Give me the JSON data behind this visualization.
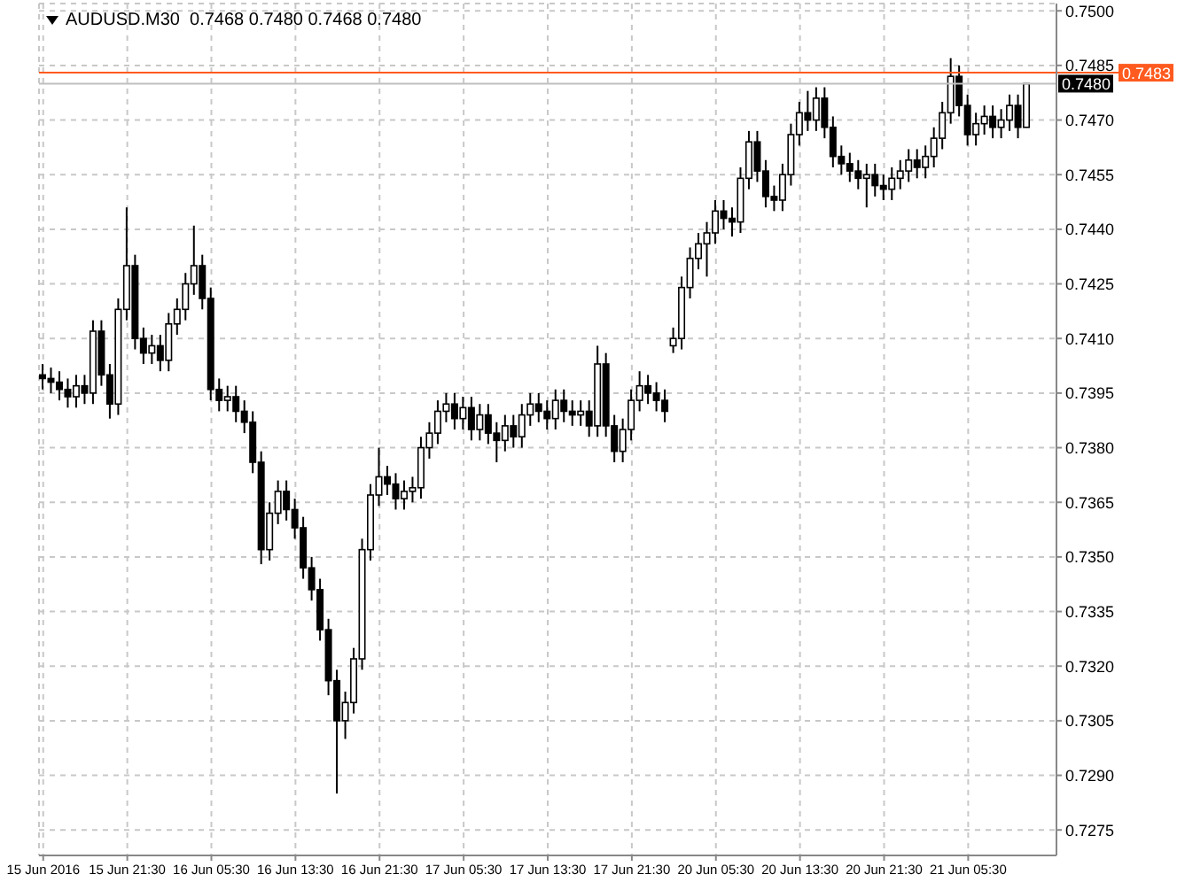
{
  "chart_data": {
    "type": "candlestick",
    "title": "AUDUSD.M30  0.7468 0.7480 0.7468 0.7480",
    "color": "#000000",
    "grid": true,
    "legend": false,
    "categories": [
      "15 Jun 2016",
      null,
      null,
      null,
      null,
      null,
      null,
      null,
      null,
      null,
      "15 Jun 21:30",
      null,
      null,
      null,
      null,
      null,
      null,
      null,
      null,
      null,
      "16 Jun 05:30",
      null,
      null,
      null,
      null,
      null,
      null,
      null,
      null,
      null,
      "16 Jun 13:30",
      null,
      null,
      null,
      null,
      null,
      null,
      null,
      null,
      null,
      "16 Jun 21:30",
      null,
      null,
      null,
      null,
      null,
      null,
      null,
      null,
      null,
      "17 Jun 05:30",
      null,
      null,
      null,
      null,
      null,
      null,
      null,
      null,
      null,
      "17 Jun 13:30",
      null,
      null,
      null,
      null,
      null,
      null,
      null,
      null,
      null,
      "17 Jun 21:30",
      null,
      null,
      null,
      null,
      null,
      null,
      null,
      null,
      null,
      "20 Jun 05:30",
      null,
      null,
      null,
      null,
      null,
      null,
      null,
      null,
      null,
      "20 Jun 13:30",
      null,
      null,
      null,
      null,
      null,
      null,
      null,
      null,
      null,
      "20 Jun 21:30",
      null,
      null,
      null,
      null,
      null,
      null,
      null,
      null,
      null,
      "21 Jun 05:30",
      null,
      null,
      null,
      null,
      null,
      null,
      null,
      null,
      null,
      null
    ],
    "ohlc": [
      [
        0.74,
        0.7403,
        0.7396,
        0.7399
      ],
      [
        0.7399,
        0.7402,
        0.7395,
        0.7398
      ],
      [
        0.7398,
        0.7401,
        0.7393,
        0.7396
      ],
      [
        0.7396,
        0.7399,
        0.7391,
        0.7394
      ],
      [
        0.7394,
        0.74,
        0.7391,
        0.7397
      ],
      [
        0.7397,
        0.74,
        0.7392,
        0.7395
      ],
      [
        0.7395,
        0.7415,
        0.7392,
        0.7412
      ],
      [
        0.7412,
        0.7415,
        0.7397,
        0.74
      ],
      [
        0.74,
        0.7403,
        0.7388,
        0.7392
      ],
      [
        0.7392,
        0.7421,
        0.7389,
        0.7418
      ],
      [
        0.7418,
        0.7446,
        0.7415,
        0.743
      ],
      [
        0.743,
        0.7433,
        0.7407,
        0.741
      ],
      [
        0.741,
        0.7413,
        0.7403,
        0.7406
      ],
      [
        0.7406,
        0.7411,
        0.7403,
        0.7408
      ],
      [
        0.7408,
        0.7411,
        0.7401,
        0.7404
      ],
      [
        0.7404,
        0.7417,
        0.7401,
        0.7414
      ],
      [
        0.7414,
        0.7421,
        0.7411,
        0.7418
      ],
      [
        0.7418,
        0.7428,
        0.7415,
        0.7425
      ],
      [
        0.7425,
        0.7441,
        0.7422,
        0.743
      ],
      [
        0.743,
        0.7433,
        0.7418,
        0.7421
      ],
      [
        0.7421,
        0.7424,
        0.7393,
        0.7396
      ],
      [
        0.7396,
        0.7399,
        0.739,
        0.7393
      ],
      [
        0.7393,
        0.7397,
        0.739,
        0.7394
      ],
      [
        0.7394,
        0.7397,
        0.7387,
        0.739
      ],
      [
        0.739,
        0.7393,
        0.7384,
        0.7387
      ],
      [
        0.7387,
        0.739,
        0.7373,
        0.7376
      ],
      [
        0.7376,
        0.7379,
        0.7348,
        0.7352
      ],
      [
        0.7352,
        0.7365,
        0.7349,
        0.7362
      ],
      [
        0.7362,
        0.7371,
        0.7359,
        0.7368
      ],
      [
        0.7368,
        0.7371,
        0.736,
        0.7363
      ],
      [
        0.7363,
        0.7366,
        0.7355,
        0.7358
      ],
      [
        0.7358,
        0.7361,
        0.7344,
        0.7347
      ],
      [
        0.7347,
        0.735,
        0.7338,
        0.7341
      ],
      [
        0.7341,
        0.7344,
        0.7327,
        0.733
      ],
      [
        0.733,
        0.7333,
        0.7312,
        0.7316
      ],
      [
        0.7316,
        0.7319,
        0.7285,
        0.7305
      ],
      [
        0.7305,
        0.7313,
        0.73,
        0.731
      ],
      [
        0.731,
        0.7325,
        0.7307,
        0.7322
      ],
      [
        0.7322,
        0.7355,
        0.7319,
        0.7352
      ],
      [
        0.7352,
        0.737,
        0.7349,
        0.7367
      ],
      [
        0.7367,
        0.738,
        0.7364,
        0.7372
      ],
      [
        0.7372,
        0.7375,
        0.7367,
        0.737
      ],
      [
        0.737,
        0.7373,
        0.7363,
        0.7366
      ],
      [
        0.7366,
        0.7371,
        0.7363,
        0.7368
      ],
      [
        0.7368,
        0.7372,
        0.7365,
        0.7369
      ],
      [
        0.7369,
        0.7383,
        0.7366,
        0.738
      ],
      [
        0.738,
        0.7387,
        0.7377,
        0.7384
      ],
      [
        0.7384,
        0.7393,
        0.7381,
        0.739
      ],
      [
        0.739,
        0.7395,
        0.7387,
        0.7392
      ],
      [
        0.7392,
        0.7395,
        0.7385,
        0.7388
      ],
      [
        0.7388,
        0.7394,
        0.7385,
        0.7391
      ],
      [
        0.7391,
        0.7394,
        0.7382,
        0.7385
      ],
      [
        0.7385,
        0.7392,
        0.7382,
        0.7389
      ],
      [
        0.7389,
        0.7392,
        0.7381,
        0.7384
      ],
      [
        0.7384,
        0.7387,
        0.7376,
        0.7382
      ],
      [
        0.7382,
        0.7389,
        0.7379,
        0.7386
      ],
      [
        0.7386,
        0.7389,
        0.738,
        0.7383
      ],
      [
        0.7383,
        0.7392,
        0.738,
        0.7389
      ],
      [
        0.7389,
        0.7395,
        0.7386,
        0.7392
      ],
      [
        0.7392,
        0.7395,
        0.7387,
        0.739
      ],
      [
        0.739,
        0.7393,
        0.7385,
        0.7388
      ],
      [
        0.7388,
        0.7396,
        0.7385,
        0.7393
      ],
      [
        0.7393,
        0.7396,
        0.7387,
        0.739
      ],
      [
        0.739,
        0.7393,
        0.7386,
        0.7389
      ],
      [
        0.7389,
        0.7393,
        0.7386,
        0.739
      ],
      [
        0.739,
        0.7393,
        0.7383,
        0.7386
      ],
      [
        0.7386,
        0.7408,
        0.7383,
        0.7403
      ],
      [
        0.7403,
        0.7406,
        0.7383,
        0.7386
      ],
      [
        0.7386,
        0.7389,
        0.7376,
        0.7379
      ],
      [
        0.7379,
        0.7388,
        0.7376,
        0.7385
      ],
      [
        0.7385,
        0.7396,
        0.7382,
        0.7393
      ],
      [
        0.7393,
        0.7401,
        0.739,
        0.7397
      ],
      [
        0.7397,
        0.74,
        0.7392,
        0.7395
      ],
      [
        0.7395,
        0.7398,
        0.739,
        0.7393
      ],
      [
        0.7393,
        0.7396,
        0.7387,
        0.739
      ],
      [
        0.7408,
        0.7413,
        0.7406,
        0.741
      ],
      [
        0.741,
        0.7427,
        0.7407,
        0.7424
      ],
      [
        0.7424,
        0.7435,
        0.7421,
        0.7432
      ],
      [
        0.7432,
        0.7439,
        0.7429,
        0.7436
      ],
      [
        0.7436,
        0.7442,
        0.7427,
        0.7439
      ],
      [
        0.7439,
        0.7448,
        0.7436,
        0.7445
      ],
      [
        0.7445,
        0.7448,
        0.744,
        0.7443
      ],
      [
        0.7443,
        0.7446,
        0.7438,
        0.7442
      ],
      [
        0.7442,
        0.7457,
        0.7439,
        0.7454
      ],
      [
        0.7454,
        0.7467,
        0.7451,
        0.7464
      ],
      [
        0.7464,
        0.7467,
        0.7453,
        0.7456
      ],
      [
        0.7456,
        0.7459,
        0.7446,
        0.7449
      ],
      [
        0.7449,
        0.7452,
        0.7445,
        0.7448
      ],
      [
        0.7448,
        0.7458,
        0.7445,
        0.7455
      ],
      [
        0.7455,
        0.7469,
        0.7452,
        0.7466
      ],
      [
        0.7466,
        0.7475,
        0.7463,
        0.7472
      ],
      [
        0.7472,
        0.7478,
        0.7467,
        0.747
      ],
      [
        0.747,
        0.7479,
        0.7467,
        0.7476
      ],
      [
        0.7476,
        0.7479,
        0.7465,
        0.7468
      ],
      [
        0.7468,
        0.7471,
        0.7457,
        0.746
      ],
      [
        0.746,
        0.7463,
        0.7455,
        0.7458
      ],
      [
        0.7458,
        0.7461,
        0.7453,
        0.7456
      ],
      [
        0.7456,
        0.7459,
        0.7451,
        0.7454
      ],
      [
        0.7454,
        0.7458,
        0.7446,
        0.7455
      ],
      [
        0.7455,
        0.7458,
        0.7449,
        0.7452
      ],
      [
        0.7452,
        0.7455,
        0.7448,
        0.7451
      ],
      [
        0.7451,
        0.7457,
        0.7448,
        0.7454
      ],
      [
        0.7454,
        0.7459,
        0.7451,
        0.7456
      ],
      [
        0.7456,
        0.7462,
        0.7453,
        0.7459
      ],
      [
        0.7459,
        0.7462,
        0.7454,
        0.7457
      ],
      [
        0.7457,
        0.7463,
        0.7454,
        0.746
      ],
      [
        0.746,
        0.7468,
        0.7457,
        0.7465
      ],
      [
        0.7465,
        0.7475,
        0.7462,
        0.7472
      ],
      [
        0.7472,
        0.7487,
        0.7469,
        0.7482
      ],
      [
        0.7482,
        0.7485,
        0.7471,
        0.7474
      ],
      [
        0.7474,
        0.7477,
        0.7463,
        0.7466
      ],
      [
        0.7466,
        0.7472,
        0.7463,
        0.7469
      ],
      [
        0.7469,
        0.7474,
        0.7466,
        0.7471
      ],
      [
        0.7471,
        0.7474,
        0.7465,
        0.7468
      ],
      [
        0.7468,
        0.7473,
        0.7465,
        0.747
      ],
      [
        0.747,
        0.7477,
        0.7467,
        0.7474
      ],
      [
        0.7474,
        0.7477,
        0.7465,
        0.7468
      ],
      [
        0.7468,
        0.748,
        0.7468,
        0.748
      ],
      null,
      null,
      null
    ],
    "ylim": [
      0.7268,
      0.7502
    ],
    "yticks": [
      {
        "value": 0.75,
        "label": "0.7500"
      },
      {
        "value": 0.7485,
        "label": "0.7485"
      },
      {
        "value": 0.747,
        "label": "0.7470"
      },
      {
        "value": 0.7455,
        "label": "0.7455"
      },
      {
        "value": 0.744,
        "label": "0.7440"
      },
      {
        "value": 0.7425,
        "label": "0.7425"
      },
      {
        "value": 0.741,
        "label": "0.7410"
      },
      {
        "value": 0.7395,
        "label": "0.7395"
      },
      {
        "value": 0.738,
        "label": "0.7380"
      },
      {
        "value": 0.7365,
        "label": "0.7365"
      },
      {
        "value": 0.735,
        "label": "0.7350"
      },
      {
        "value": 0.7335,
        "label": "0.7335"
      },
      {
        "value": 0.732,
        "label": "0.7320"
      },
      {
        "value": 0.7305,
        "label": "0.7305"
      },
      {
        "value": 0.729,
        "label": "0.7290"
      },
      {
        "value": 0.7275,
        "label": "0.7275"
      }
    ],
    "ref_lines": [
      {
        "axis": "y",
        "value": 0.748,
        "label": "0.7480",
        "color": "#c0c0c0"
      },
      {
        "axis": "y",
        "value": 0.7483,
        "label": "0.7483",
        "color": "#ff5a1f"
      }
    ]
  }
}
